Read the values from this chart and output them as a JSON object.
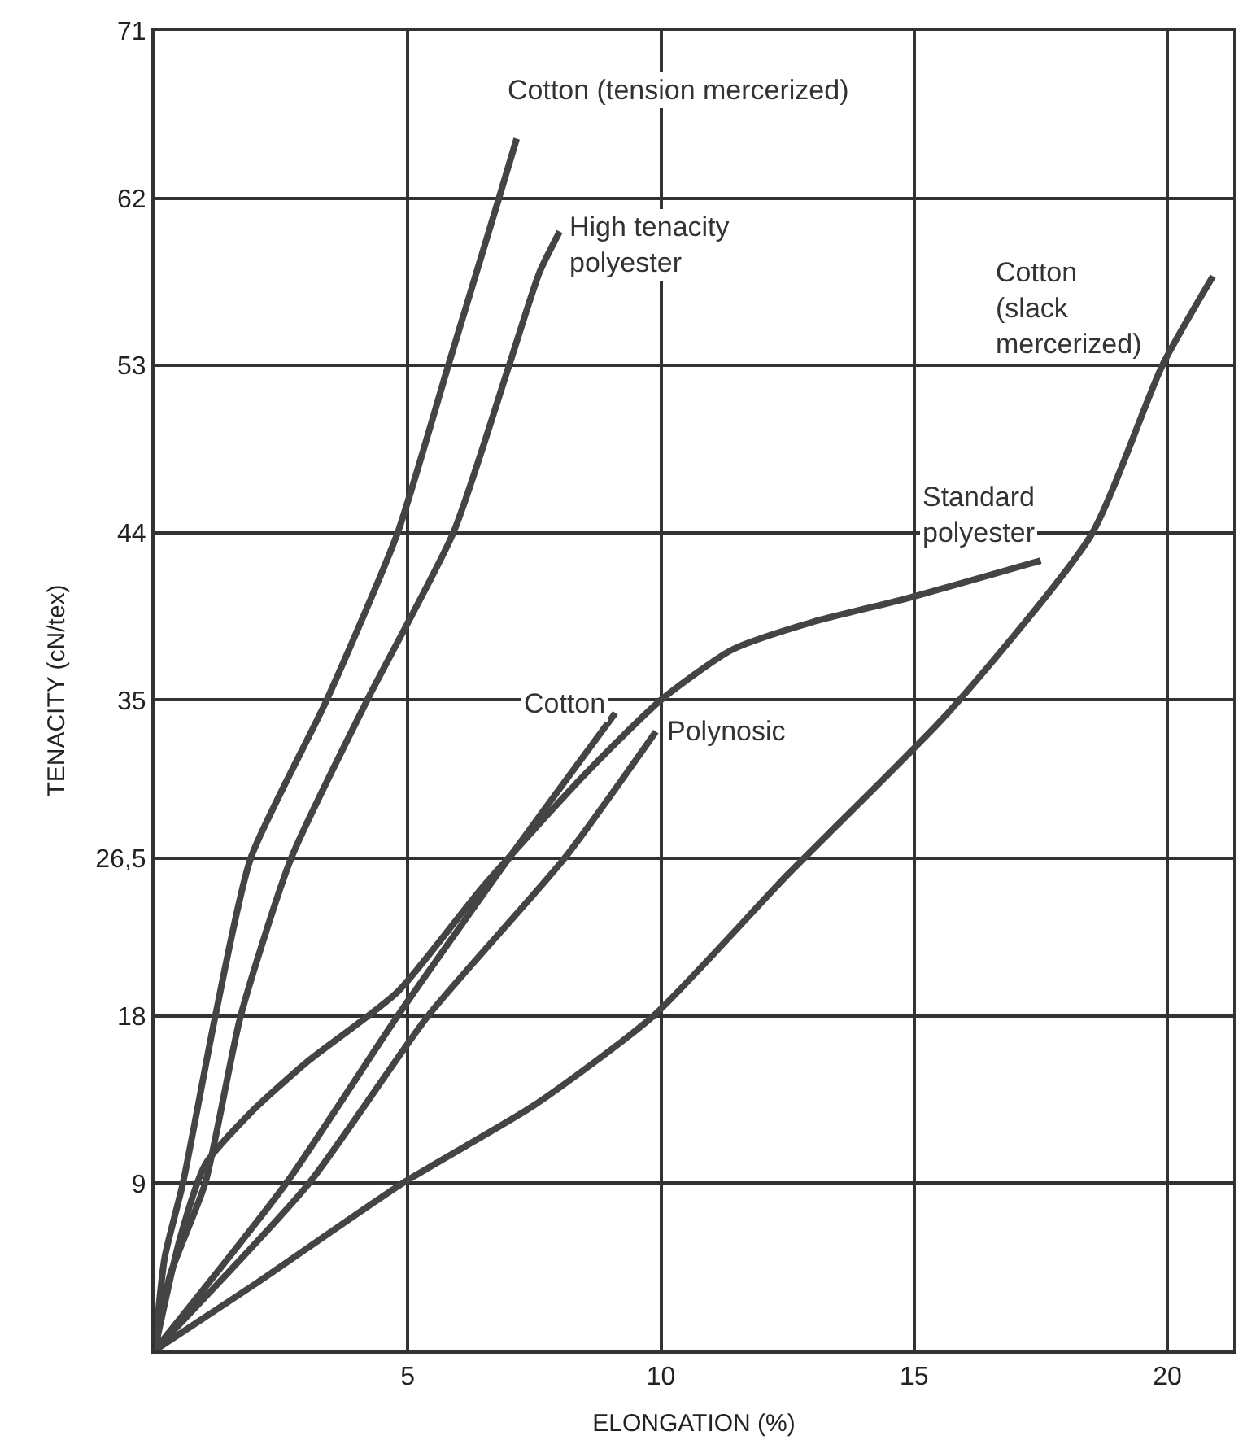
{
  "chart_data": {
    "type": "line",
    "xlabel": "ELONGATION (%)",
    "ylabel": "TENACITY (cN/tex)",
    "xlim": [
      0,
      21.3
    ],
    "xticks": [
      5,
      10,
      15,
      20
    ],
    "ylim": [
      0,
      71
    ],
    "yticks": [
      9,
      18,
      {
        "value": 26.5,
        "label": "26,5"
      },
      35,
      44,
      53,
      62,
      71
    ],
    "grid": true,
    "legend": false,
    "marker": "none",
    "line_style": "solid",
    "series": [
      {
        "name": "Cotton (tension mercerized)",
        "color": "#444444",
        "x": [
          0,
          0.2,
          0.56,
          1.2,
          1.9,
          3.4,
          4.8,
          5.8,
          6.8,
          7.15
        ],
        "values": [
          0,
          5,
          9,
          18,
          26.5,
          35,
          44,
          53,
          62,
          65.2
        ]
      },
      {
        "name": "High tenacity\npolyester",
        "color": "#444444",
        "x": [
          0,
          0.3,
          1.0,
          1.7,
          2.7,
          4.2,
          5.9,
          7.0,
          7.6,
          8.0
        ],
        "values": [
          0,
          4,
          9,
          18,
          26.5,
          35,
          44,
          53,
          58,
          60.2
        ]
      },
      {
        "name": "Cotton\n(slack\nmercerized)",
        "color": "#444444",
        "x": [
          0,
          2,
          4.9,
          7.5,
          9.85,
          12.5,
          15.7,
          18.5,
          19.9,
          20.9
        ],
        "values": [
          0,
          3.6,
          9,
          13.2,
          18,
          25.6,
          34.4,
          43.9,
          53,
          57.8
        ]
      },
      {
        "name": "Standard\npolyester",
        "color": "#444444",
        "x": [
          0,
          0.5,
          1.0,
          1.9,
          3.0,
          4.8,
          6.5,
          8.5,
          10,
          11.4,
          13,
          14.9,
          17.5
        ],
        "values": [
          0,
          6,
          10,
          12.8,
          15.5,
          19.3,
          25,
          31,
          35,
          37.7,
          39.2,
          40.5,
          42.5
        ]
      },
      {
        "name": "Cotton",
        "color": "#444444",
        "x": [
          0,
          2.6,
          4.8,
          7.0,
          9.1
        ],
        "values": [
          0,
          9,
          18,
          26.5,
          34.3
        ]
      },
      {
        "name": "Polynosic",
        "color": "#444444",
        "x": [
          0,
          3.05,
          5.4,
          8.1,
          9.9
        ],
        "values": [
          0,
          9,
          18,
          26.5,
          33.3
        ]
      }
    ]
  }
}
